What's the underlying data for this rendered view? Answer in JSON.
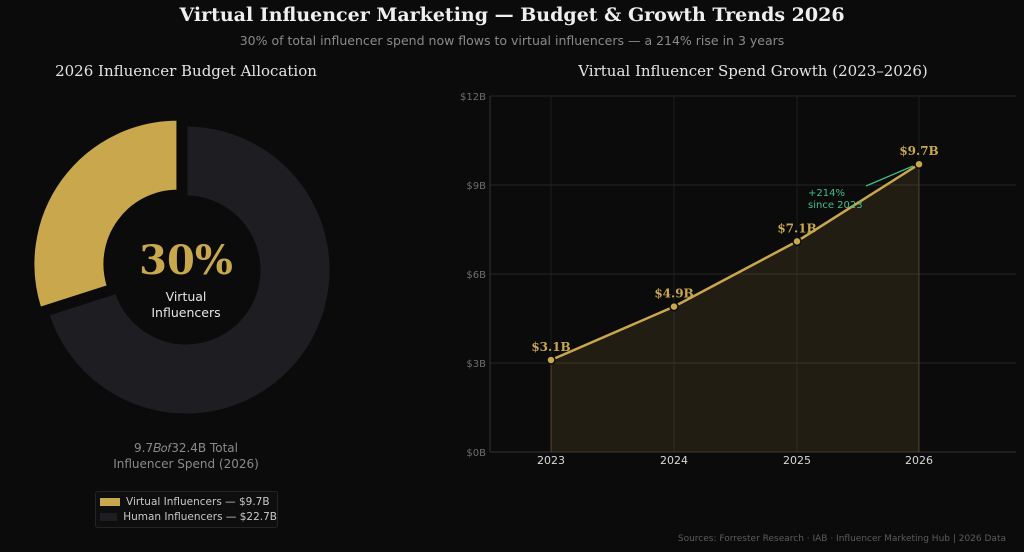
{
  "header": {
    "title": "Virtual Influencer Marketing — Budget & Growth Trends 2026",
    "subtitle": "30% of total influencer spend now flows to virtual influencers — a 214% rise in 3 years"
  },
  "donut": {
    "center_value": "30%",
    "center_label_line1": "Virtual",
    "center_label_line2": "Influencers",
    "note_line1": "9.7𝐵𝑜𝑓32.4B Total",
    "note_line2": "Influencer Spend (2026)",
    "legend": [
      {
        "label": "Virtual Influencers — $9.7B",
        "color": "#c9a74c"
      },
      {
        "label": "Human Influencers — $22.7B",
        "color": "#1e1d22"
      }
    ]
  },
  "chart_data": [
    {
      "type": "pie",
      "title": "2026 Influencer Budget Allocation",
      "categories": [
        "Virtual Influencers",
        "Human Influencers"
      ],
      "values": [
        9.7,
        22.7
      ],
      "unit": "$B",
      "colors": [
        "#c9a74c",
        "#1e1d22"
      ],
      "donut": true,
      "exploded": "Virtual Influencers"
    },
    {
      "type": "area",
      "title": "Virtual Influencer Spend Growth (2023–2026)",
      "x": [
        "2023",
        "2024",
        "2025",
        "2026"
      ],
      "values": [
        3.1,
        4.9,
        7.1,
        9.7
      ],
      "data_labels": [
        "$3.1B",
        "$4.9B",
        "$7.1B",
        "$9.7B"
      ],
      "ylim": [
        0,
        12
      ],
      "y_ticks": [
        0,
        3,
        6,
        9,
        12
      ],
      "y_tick_labels": [
        "$0B",
        "$3B",
        "$6B",
        "$9B",
        "$12B"
      ],
      "grid": true,
      "color": "#c9a74c",
      "annotation": {
        "text_line1": "+214%",
        "text_line2": "since 2023",
        "color": "#3fbf8a",
        "points_to": "2026"
      }
    }
  ],
  "footer": {
    "sources": "Sources: Forrester Research · IAB · Influencer Marketing Hub  |  2026 Data"
  }
}
